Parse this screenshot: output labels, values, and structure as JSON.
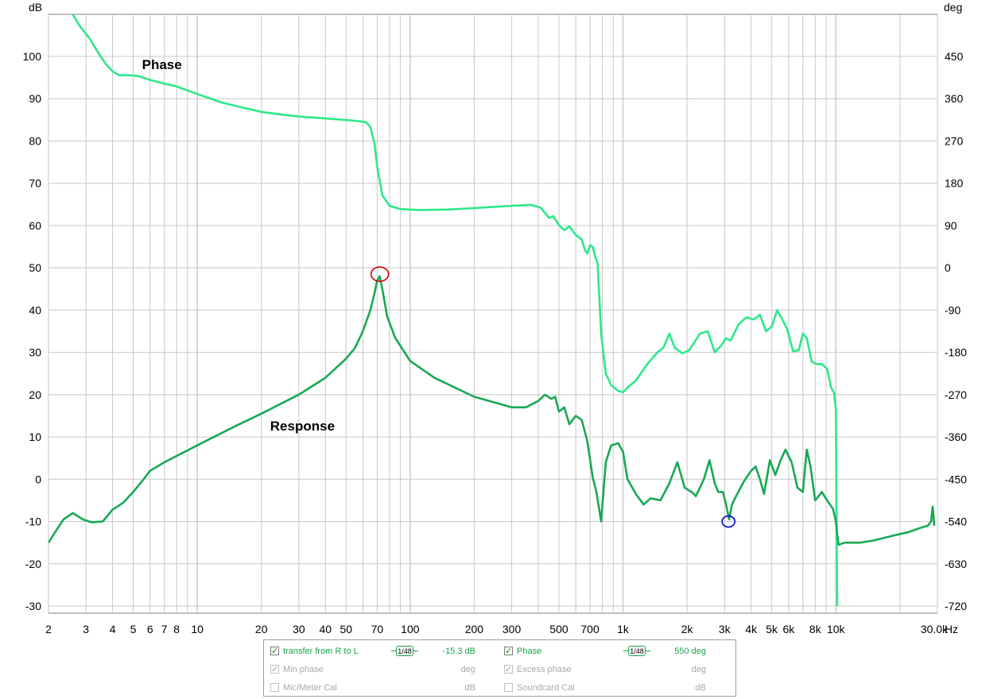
{
  "chart_data": {
    "type": "line",
    "xscale": "log",
    "xlim": [
      2,
      30000
    ],
    "x_unit": "Hz",
    "x_ticks": [
      "2",
      "3",
      "4",
      "5",
      "6",
      "7",
      "8",
      "10",
      "20",
      "30",
      "40",
      "50",
      "70",
      "100",
      "200",
      "300",
      "500",
      "700",
      "1k",
      "2k",
      "3k",
      "4k",
      "5k",
      "6k",
      "8k",
      "10k",
      "30.0k"
    ],
    "y_left_unit": "dB",
    "y_left_lim": [
      -32,
      110
    ],
    "y_left_ticks": [
      100,
      90,
      80,
      70,
      60,
      50,
      40,
      30,
      20,
      10,
      0,
      -10,
      -20,
      -30
    ],
    "y_right_unit": "deg",
    "y_right_ticks": [
      450,
      360,
      270,
      180,
      90,
      0,
      -90,
      -180,
      -270,
      -360,
      -450,
      -540,
      -630,
      -720
    ],
    "grid": true,
    "series": [
      {
        "name": "Phase",
        "axis": "right",
        "color": "#2de88a",
        "points": [
          [
            2.6,
            540
          ],
          [
            2.8,
            515
          ],
          [
            3.1,
            490
          ],
          [
            3.4,
            460
          ],
          [
            3.7,
            435
          ],
          [
            4.0,
            418
          ],
          [
            4.3,
            410
          ],
          [
            4.8,
            410
          ],
          [
            5.3,
            408
          ],
          [
            6.0,
            400
          ],
          [
            7.0,
            392
          ],
          [
            8.0,
            386
          ],
          [
            10,
            370
          ],
          [
            13,
            352
          ],
          [
            16,
            342
          ],
          [
            20,
            332
          ],
          [
            25,
            326
          ],
          [
            30,
            322
          ],
          [
            40,
            318
          ],
          [
            55,
            313
          ],
          [
            62,
            310
          ],
          [
            65,
            300
          ],
          [
            68,
            265
          ],
          [
            70,
            215
          ],
          [
            74,
            155
          ],
          [
            80,
            132
          ],
          [
            90,
            125
          ],
          [
            110,
            123
          ],
          [
            150,
            124
          ],
          [
            200,
            127
          ],
          [
            300,
            132
          ],
          [
            370,
            134
          ],
          [
            410,
            128
          ],
          [
            450,
            106
          ],
          [
            470,
            110
          ],
          [
            500,
            91
          ],
          [
            530,
            80
          ],
          [
            560,
            88
          ],
          [
            600,
            70
          ],
          [
            640,
            60
          ],
          [
            660,
            40
          ],
          [
            680,
            30
          ],
          [
            700,
            48
          ],
          [
            720,
            45
          ],
          [
            740,
            25
          ],
          [
            760,
            10
          ],
          [
            790,
            -140
          ],
          [
            830,
            -225
          ],
          [
            880,
            -250
          ],
          [
            950,
            -262
          ],
          [
            1000,
            -265
          ],
          [
            1050,
            -255
          ],
          [
            1150,
            -240
          ],
          [
            1300,
            -205
          ],
          [
            1450,
            -180
          ],
          [
            1550,
            -170
          ],
          [
            1650,
            -140
          ],
          [
            1750,
            -170
          ],
          [
            1900,
            -182
          ],
          [
            2050,
            -175
          ],
          [
            2300,
            -140
          ],
          [
            2500,
            -135
          ],
          [
            2700,
            -180
          ],
          [
            2900,
            -165
          ],
          [
            3050,
            -150
          ],
          [
            3200,
            -155
          ],
          [
            3500,
            -120
          ],
          [
            3800,
            -105
          ],
          [
            4100,
            -110
          ],
          [
            4400,
            -100
          ],
          [
            4700,
            -135
          ],
          [
            5000,
            -125
          ],
          [
            5300,
            -90
          ],
          [
            5600,
            -110
          ],
          [
            5900,
            -130
          ],
          [
            6300,
            -178
          ],
          [
            6700,
            -175
          ],
          [
            7000,
            -140
          ],
          [
            7300,
            -150
          ],
          [
            7700,
            -200
          ],
          [
            8100,
            -205
          ],
          [
            8600,
            -205
          ],
          [
            9100,
            -215
          ],
          [
            9500,
            -255
          ],
          [
            9800,
            -265
          ],
          [
            10000,
            -300
          ],
          [
            10150,
            -720
          ]
        ]
      },
      {
        "name": "Response",
        "axis": "left",
        "color": "#18a855",
        "points": [
          [
            2.0,
            -15
          ],
          [
            2.15,
            -12.5
          ],
          [
            2.35,
            -9.5
          ],
          [
            2.6,
            -8
          ],
          [
            2.9,
            -9.5
          ],
          [
            3.2,
            -10.2
          ],
          [
            3.6,
            -10
          ],
          [
            4.0,
            -7.2
          ],
          [
            4.5,
            -5.5
          ],
          [
            5.0,
            -3
          ],
          [
            5.5,
            -0.5
          ],
          [
            6.0,
            2
          ],
          [
            7.0,
            4
          ],
          [
            8.0,
            5.5
          ],
          [
            10,
            8
          ],
          [
            15,
            12.5
          ],
          [
            20,
            15.5
          ],
          [
            30,
            20
          ],
          [
            40,
            24
          ],
          [
            50,
            28.5
          ],
          [
            55,
            31
          ],
          [
            60,
            35
          ],
          [
            65,
            40
          ],
          [
            68,
            44
          ],
          [
            70,
            47
          ],
          [
            72,
            48
          ],
          [
            74,
            45
          ],
          [
            78,
            38.5
          ],
          [
            85,
            33.5
          ],
          [
            100,
            28
          ],
          [
            130,
            24
          ],
          [
            200,
            19.5
          ],
          [
            300,
            17
          ],
          [
            350,
            17
          ],
          [
            400,
            18.5
          ],
          [
            430,
            20
          ],
          [
            460,
            19
          ],
          [
            480,
            19.5
          ],
          [
            500,
            16
          ],
          [
            530,
            17
          ],
          [
            560,
            13
          ],
          [
            600,
            15
          ],
          [
            640,
            14
          ],
          [
            680,
            9
          ],
          [
            720,
            0.5
          ],
          [
            750,
            -3
          ],
          [
            790,
            -10
          ],
          [
            830,
            4
          ],
          [
            880,
            8
          ],
          [
            950,
            8.5
          ],
          [
            1000,
            6.5
          ],
          [
            1050,
            0
          ],
          [
            1150,
            -3.5
          ],
          [
            1250,
            -6
          ],
          [
            1350,
            -4.5
          ],
          [
            1500,
            -5
          ],
          [
            1650,
            -1
          ],
          [
            1800,
            4
          ],
          [
            1950,
            -2
          ],
          [
            2100,
            -3
          ],
          [
            2200,
            -4
          ],
          [
            2400,
            0
          ],
          [
            2550,
            4.5
          ],
          [
            2700,
            -1
          ],
          [
            2800,
            -3
          ],
          [
            2950,
            -3
          ],
          [
            3050,
            -6
          ],
          [
            3150,
            -9.5
          ],
          [
            3250,
            -6
          ],
          [
            3400,
            -4
          ],
          [
            3700,
            -0.5
          ],
          [
            4000,
            2
          ],
          [
            4200,
            3
          ],
          [
            4400,
            0
          ],
          [
            4600,
            -3.5
          ],
          [
            4900,
            4.5
          ],
          [
            5200,
            1
          ],
          [
            5500,
            4.5
          ],
          [
            5800,
            7
          ],
          [
            6200,
            4
          ],
          [
            6600,
            -2
          ],
          [
            7000,
            -3
          ],
          [
            7300,
            7
          ],
          [
            7600,
            3
          ],
          [
            8000,
            -5
          ],
          [
            8600,
            -3
          ],
          [
            9100,
            -5
          ],
          [
            9700,
            -7
          ],
          [
            10000,
            -10
          ],
          [
            10150,
            -13
          ],
          [
            10300,
            -15.5
          ],
          [
            11000,
            -15
          ],
          [
            13000,
            -15
          ],
          [
            15000,
            -14.5
          ],
          [
            18000,
            -13.5
          ],
          [
            22000,
            -12.5
          ],
          [
            25000,
            -11.5
          ],
          [
            27000,
            -11
          ],
          [
            28000,
            -10
          ],
          [
            28500,
            -6.5
          ],
          [
            29000,
            -11
          ]
        ]
      }
    ],
    "annotations": [
      {
        "text": "Phase",
        "x": 5.5,
        "y": 97
      },
      {
        "text": "Response",
        "x": 22,
        "y": 11.5
      }
    ],
    "markers": [
      {
        "color": "#cc0000",
        "x": 72,
        "y": 48.5
      },
      {
        "color": "#0000cc",
        "x": 3130,
        "y": -10
      }
    ]
  },
  "legend": {
    "rows": [
      {
        "left": {
          "name": "transfer from R to L",
          "checked": true,
          "enabled": true,
          "smoothing": "1/48",
          "value": "-15.3 dB"
        },
        "right": {
          "name": "Phase",
          "checked": true,
          "enabled": true,
          "smoothing": "1/48",
          "value": "550 deg"
        }
      },
      {
        "left": {
          "name": "Min phase",
          "checked": true,
          "enabled": false,
          "value": "deg"
        },
        "right": {
          "name": "Excess phase",
          "checked": true,
          "enabled": false,
          "value": "deg"
        }
      },
      {
        "left": {
          "name": "Mic/Meter Cal",
          "checked": false,
          "enabled": false,
          "value": "dB"
        },
        "right": {
          "name": "Soundcard Cal",
          "checked": false,
          "enabled": false,
          "value": "dB"
        }
      }
    ]
  }
}
